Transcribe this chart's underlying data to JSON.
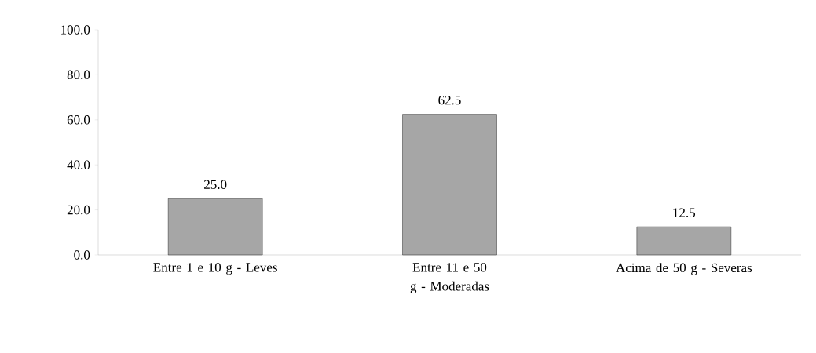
{
  "chart_data": {
    "type": "bar",
    "categories": [
      "Entre 1 e 10 g - Leves",
      "Entre 11 e 50 g - Moderadas",
      "Acima de 50 g - Severas"
    ],
    "values": [
      25.0,
      62.5,
      12.5
    ],
    "value_labels": [
      "25.0",
      "62.5",
      "12.5"
    ],
    "color": "#a6a6a6",
    "ylim": [
      0,
      100
    ],
    "yticks": [
      {
        "value": 0,
        "label": "0.0"
      },
      {
        "value": 20,
        "label": "20.0"
      },
      {
        "value": 40,
        "label": "40.0"
      },
      {
        "value": 60,
        "label": "60.0"
      },
      {
        "value": 80,
        "label": "80.0"
      },
      {
        "value": 100,
        "label": "100.0"
      }
    ],
    "grid": false
  }
}
